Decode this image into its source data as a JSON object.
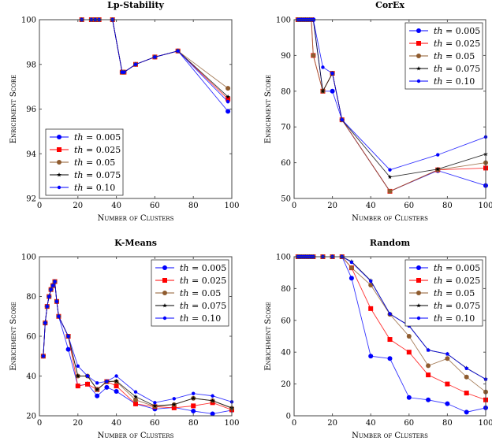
{
  "colors": {
    "th=0.005": "#0000ff",
    "th=0.025": "#ff0000",
    "th=0.05": "#8f5b2e",
    "th=0.075": "#000000",
    "th=0.10": "#0000ff"
  },
  "chart_data": [
    {
      "type": "line",
      "title": "Lp-Stability",
      "xlabel": "Number of Clusters",
      "ylabel": "Enrichment Score",
      "xlim": [
        0,
        100
      ],
      "ylim": [
        92,
        100
      ],
      "xticks": [
        0,
        20,
        40,
        60,
        80,
        100
      ],
      "yticks": [
        92,
        94,
        96,
        98,
        100
      ],
      "legend": "bottom-left",
      "grid": true,
      "x": [
        22,
        27,
        29,
        31,
        38,
        43,
        44,
        50,
        60,
        72,
        98
      ],
      "series": [
        {
          "name": "th = 0.005",
          "marker": "circle",
          "values": [
            100,
            100,
            100,
            100,
            100,
            97.65,
            97.65,
            98,
            98.33,
            98.6,
            95.9
          ]
        },
        {
          "name": "th = 0.025",
          "marker": "square",
          "values": [
            100,
            100,
            100,
            100,
            100,
            97.65,
            97.65,
            98,
            98.33,
            98.6,
            96.45
          ]
        },
        {
          "name": "th = 0.05",
          "marker": "circle",
          "values": [
            100,
            100,
            100,
            100,
            100,
            97.65,
            97.65,
            98,
            98.33,
            98.6,
            96.93
          ]
        },
        {
          "name": "th = 0.075",
          "marker": "star",
          "values": [
            100,
            100,
            100,
            100,
            100,
            97.65,
            97.65,
            98,
            98.33,
            98.6,
            96.55
          ]
        },
        {
          "name": "th = 0.10",
          "marker": "diamond",
          "values": [
            100,
            100,
            100,
            100,
            100,
            97.65,
            97.65,
            98,
            98.33,
            98.6,
            96.33
          ]
        }
      ]
    },
    {
      "type": "line",
      "title": "CorEx",
      "xlabel": "Number of Clusters",
      "ylabel": "Enrichment Score",
      "xlim": [
        0,
        100
      ],
      "ylim": [
        50,
        100
      ],
      "xticks": [
        0,
        20,
        40,
        60,
        80,
        100
      ],
      "yticks": [
        50,
        60,
        70,
        80,
        90,
        100
      ],
      "legend": "top-right",
      "grid": true,
      "x": [
        2,
        3,
        4,
        5,
        6,
        7,
        8,
        9,
        10,
        15,
        20,
        25,
        50,
        75,
        100
      ],
      "series": [
        {
          "name": "th = 0.005",
          "marker": "circle",
          "values": [
            100,
            100,
            100,
            100,
            100,
            100,
            100,
            100,
            100,
            80,
            80,
            72,
            52,
            57.8,
            53.6
          ]
        },
        {
          "name": "th = 0.025",
          "marker": "square",
          "values": [
            100,
            100,
            100,
            100,
            100,
            100,
            100,
            100,
            90,
            80,
            85,
            72,
            52,
            58,
            58.5
          ]
        },
        {
          "name": "th = 0.05",
          "marker": "circle",
          "values": [
            100,
            100,
            100,
            100,
            100,
            100,
            100,
            100,
            90,
            80,
            85,
            72,
            52,
            58,
            60
          ]
        },
        {
          "name": "th = 0.075",
          "marker": "star",
          "values": [
            100,
            100,
            100,
            100,
            100,
            100,
            100,
            100,
            100,
            80,
            85,
            72,
            56,
            58.2,
            62.4
          ]
        },
        {
          "name": "th = 0.10",
          "marker": "diamond",
          "values": [
            100,
            100,
            100,
            100,
            100,
            100,
            100,
            100,
            100,
            86.7,
            85,
            72,
            58,
            62.2,
            67.2
          ]
        }
      ]
    },
    {
      "type": "line",
      "title": "K-Means",
      "xlabel": "Number of Clusters",
      "ylabel": "Enrichment Score",
      "xlim": [
        0,
        100
      ],
      "ylim": [
        20,
        100
      ],
      "xticks": [
        0,
        20,
        40,
        60,
        80,
        100
      ],
      "yticks": [
        20,
        40,
        60,
        80,
        100
      ],
      "legend": "top-right",
      "grid": true,
      "x": [
        2,
        3,
        4,
        5,
        6,
        7,
        8,
        9,
        10,
        15,
        20,
        25,
        30,
        35,
        40,
        50,
        60,
        70,
        80,
        90,
        100
      ],
      "series": [
        {
          "name": "th = 0.005",
          "marker": "circle",
          "values": [
            50,
            66.7,
            75,
            80,
            83.5,
            85.5,
            87.5,
            77.5,
            70,
            53.4,
            35,
            36,
            30,
            34.3,
            32.3,
            26,
            23.4,
            24.2,
            22.4,
            21,
            22.8
          ]
        },
        {
          "name": "th = 0.025",
          "marker": "square",
          "values": [
            50,
            66.7,
            75,
            80,
            83.5,
            85.5,
            87.5,
            77.5,
            70,
            60,
            35,
            35.9,
            33.2,
            37.2,
            35,
            26,
            24.6,
            24,
            25,
            26.6,
            23
          ]
        },
        {
          "name": "th = 0.05",
          "marker": "circle",
          "values": [
            50,
            66.7,
            75,
            80,
            83.5,
            85.5,
            87.5,
            77.5,
            70,
            60,
            40,
            40,
            33.2,
            37.2,
            37.2,
            28,
            24.7,
            25.6,
            28.8,
            27.6,
            23.8
          ]
        },
        {
          "name": "th = 0.075",
          "marker": "star",
          "values": [
            50,
            66.7,
            75,
            80,
            83.5,
            85.5,
            87.5,
            77.5,
            70,
            60,
            40,
            40,
            33.2,
            37.2,
            37.5,
            29.6,
            25,
            25.7,
            28.8,
            27.6,
            24
          ]
        },
        {
          "name": "th = 0.10",
          "marker": "diamond",
          "values": [
            50,
            66.7,
            75,
            80,
            83.5,
            85.5,
            87.5,
            77.5,
            70,
            60,
            45,
            40,
            36.5,
            37.3,
            40,
            32,
            26.6,
            28.6,
            31.2,
            30,
            27
          ]
        }
      ]
    },
    {
      "type": "line",
      "title": "Random",
      "xlabel": "Number of Clusters",
      "ylabel": "Enrichment Score",
      "xlim": [
        0,
        100
      ],
      "ylim": [
        0,
        100
      ],
      "xticks": [
        0,
        20,
        40,
        60,
        80,
        100
      ],
      "yticks": [
        0,
        20,
        40,
        60,
        80,
        100
      ],
      "legend": "top-right",
      "grid": true,
      "x": [
        2,
        3,
        4,
        5,
        6,
        7,
        8,
        9,
        10,
        15,
        20,
        25,
        30,
        40,
        50,
        60,
        70,
        80,
        90,
        100
      ],
      "series": [
        {
          "name": "th = 0.005",
          "marker": "circle",
          "values": [
            100,
            100,
            100,
            100,
            100,
            100,
            100,
            100,
            100,
            100,
            100,
            100,
            86.5,
            37.5,
            36,
            11.5,
            10,
            7.6,
            2.3,
            5
          ]
        },
        {
          "name": "th = 0.025",
          "marker": "square",
          "values": [
            100,
            100,
            100,
            100,
            100,
            100,
            100,
            100,
            100,
            100,
            100,
            100,
            93,
            67.4,
            48,
            40,
            25.7,
            20,
            14.3,
            10
          ]
        },
        {
          "name": "th = 0.05",
          "marker": "circle",
          "values": [
            100,
            100,
            100,
            100,
            100,
            100,
            100,
            100,
            100,
            100,
            100,
            100,
            93,
            82.2,
            63.8,
            50,
            31.5,
            36,
            24.4,
            15
          ]
        },
        {
          "name": "th = 0.075",
          "marker": "star",
          "values": [
            100,
            100,
            100,
            100,
            100,
            100,
            100,
            100,
            100,
            100,
            100,
            100,
            97,
            85,
            64,
            56.7,
            41.3,
            38.8,
            30,
            23
          ]
        },
        {
          "name": "th = 0.10",
          "marker": "diamond",
          "values": [
            100,
            100,
            100,
            100,
            100,
            100,
            100,
            100,
            100,
            100,
            100,
            100,
            96.5,
            84.7,
            64.1,
            56.5,
            41.3,
            38.9,
            29.8,
            23
          ]
        }
      ]
    }
  ]
}
